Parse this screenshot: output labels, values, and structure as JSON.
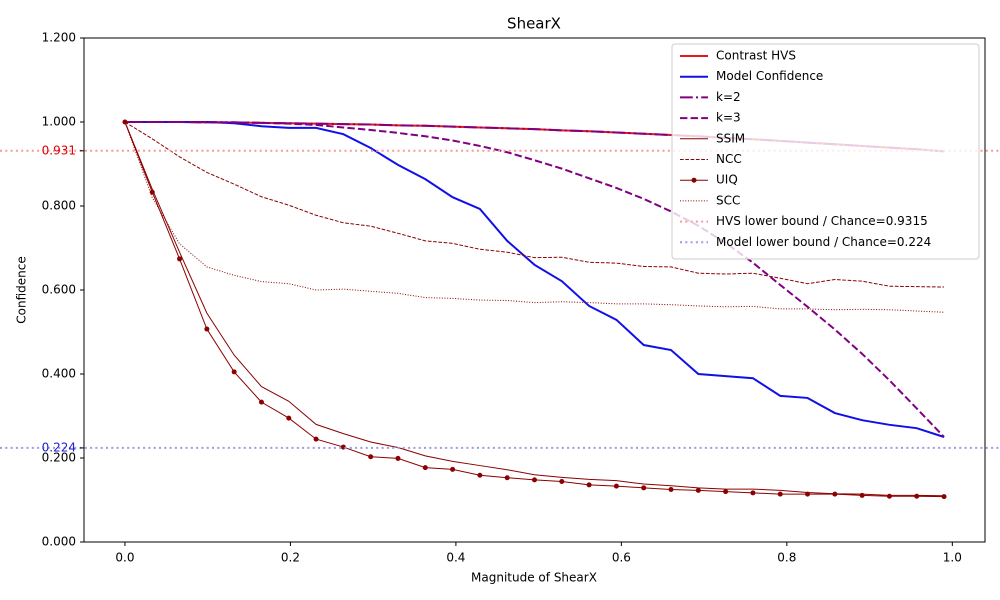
{
  "chart_data": {
    "type": "line",
    "title": "ShearX",
    "xlabel": "Magnitude of ShearX",
    "ylabel": "Confidence",
    "xlim": [
      -0.0495,
      1.0395
    ],
    "ylim": [
      0,
      1.2
    ],
    "xticks": [
      {
        "value": 0,
        "label": "0.0"
      },
      {
        "value": 0.2,
        "label": "0.2"
      },
      {
        "value": 0.4,
        "label": "0.4"
      },
      {
        "value": 0.6,
        "label": "0.6"
      },
      {
        "value": 0.8,
        "label": "0.8"
      },
      {
        "value": 1.0,
        "label": "1.0"
      }
    ],
    "yticks": [
      {
        "value": 0,
        "label": "0.000"
      },
      {
        "value": 0.2,
        "label": "0.200"
      },
      {
        "value": 0.4,
        "label": "0.400"
      },
      {
        "value": 0.6,
        "label": "0.600"
      },
      {
        "value": 0.8,
        "label": "0.800"
      },
      {
        "value": 1.0,
        "label": "1.000"
      },
      {
        "value": 1.2,
        "label": "1.200"
      }
    ],
    "legend": "upper right",
    "x": [
      0,
      0.033,
      0.066,
      0.099,
      0.132,
      0.165,
      0.198,
      0.231,
      0.264,
      0.297,
      0.33,
      0.363,
      0.396,
      0.429,
      0.462,
      0.495,
      0.528,
      0.561,
      0.594,
      0.627,
      0.66,
      0.693,
      0.726,
      0.759,
      0.792,
      0.825,
      0.858,
      0.891,
      0.924,
      0.957,
      0.99
    ],
    "series": [
      {
        "name": "Contrast HVS",
        "color": "#e8141c",
        "linestyle": "solid",
        "linewidth": 2,
        "values": [
          1,
          1,
          1,
          0.999,
          0.999,
          0.998,
          0.997,
          0.996,
          0.995,
          0.994,
          0.992,
          0.991,
          0.989,
          0.987,
          0.985,
          0.983,
          0.98,
          0.978,
          0.975,
          0.972,
          0.969,
          0.966,
          0.962,
          0.959,
          0.955,
          0.951,
          0.947,
          0.943,
          0.939,
          0.935,
          0.93
        ]
      },
      {
        "name": "Model Confidence",
        "color": "#1010e8",
        "linestyle": "solid",
        "linewidth": 2,
        "values": [
          1,
          1,
          1,
          1,
          0.997,
          0.99,
          0.986,
          0.986,
          0.971,
          0.938,
          0.898,
          0.864,
          0.821,
          0.793,
          0.717,
          0.66,
          0.621,
          0.562,
          0.529,
          0.469,
          0.457,
          0.4,
          0.395,
          0.39,
          0.348,
          0.343,
          0.307,
          0.29,
          0.279,
          0.271,
          0.25
        ]
      },
      {
        "name": "k=2",
        "color": "#800080",
        "linestyle": "dashdot",
        "linewidth": 2,
        "values": [
          1,
          1,
          1,
          0.999,
          0.999,
          0.998,
          0.997,
          0.996,
          0.995,
          0.994,
          0.992,
          0.991,
          0.989,
          0.987,
          0.985,
          0.983,
          0.98,
          0.978,
          0.975,
          0.972,
          0.969,
          0.966,
          0.962,
          0.959,
          0.955,
          0.951,
          0.947,
          0.943,
          0.939,
          0.935,
          0.93
        ]
      },
      {
        "name": "k=3",
        "color": "#800080",
        "linestyle": "dashed",
        "linewidth": 2,
        "values": [
          1,
          1,
          1,
          1,
          0.999,
          0.998,
          0.996,
          0.993,
          0.987,
          0.981,
          0.974,
          0.966,
          0.956,
          0.943,
          0.928,
          0.909,
          0.889,
          0.866,
          0.843,
          0.817,
          0.787,
          0.753,
          0.712,
          0.665,
          0.612,
          0.56,
          0.506,
          0.448,
          0.385,
          0.318,
          0.25
        ]
      },
      {
        "name": "SSIM",
        "color": "#8b0000",
        "linestyle": "solid",
        "linewidth": 1,
        "values": [
          1,
          0.84,
          0.69,
          0.545,
          0.445,
          0.37,
          0.335,
          0.28,
          0.258,
          0.238,
          0.225,
          0.205,
          0.192,
          0.182,
          0.172,
          0.16,
          0.154,
          0.149,
          0.146,
          0.138,
          0.134,
          0.129,
          0.126,
          0.126,
          0.123,
          0.118,
          0.115,
          0.114,
          0.111,
          0.111,
          0.11
        ]
      },
      {
        "name": "NCC",
        "color": "#8b0000",
        "linestyle": "dashed",
        "linewidth": 1,
        "values": [
          1,
          0.96,
          0.917,
          0.88,
          0.852,
          0.822,
          0.802,
          0.778,
          0.76,
          0.752,
          0.735,
          0.717,
          0.711,
          0.697,
          0.69,
          0.677,
          0.678,
          0.666,
          0.664,
          0.656,
          0.655,
          0.64,
          0.638,
          0.64,
          0.628,
          0.615,
          0.625,
          0.621,
          0.609,
          0.608,
          0.607
        ]
      },
      {
        "name": "UIQ",
        "color": "#8b0000",
        "linestyle": "solid",
        "linewidth": 1,
        "marker": "circle",
        "values": [
          1,
          0.833,
          0.674,
          0.507,
          0.405,
          0.333,
          0.295,
          0.245,
          0.226,
          0.203,
          0.199,
          0.177,
          0.173,
          0.159,
          0.153,
          0.148,
          0.144,
          0.136,
          0.133,
          0.129,
          0.125,
          0.123,
          0.12,
          0.117,
          0.114,
          0.114,
          0.114,
          0.111,
          0.109,
          0.109,
          0.108
        ]
      },
      {
        "name": "SCC",
        "color": "#8b0000",
        "linestyle": "dotted",
        "linewidth": 1,
        "values": [
          1,
          0.82,
          0.71,
          0.655,
          0.635,
          0.62,
          0.615,
          0.6,
          0.602,
          0.597,
          0.592,
          0.582,
          0.58,
          0.576,
          0.575,
          0.57,
          0.572,
          0.57,
          0.567,
          0.567,
          0.565,
          0.562,
          0.56,
          0.561,
          0.555,
          0.555,
          0.553,
          0.554,
          0.553,
          0.55,
          0.547
        ]
      }
    ],
    "hlines": [
      {
        "name": "HVS lower bound / Chance=0.9315",
        "value": 0.9315,
        "label": "0.931",
        "color": "#f49a9a"
      },
      {
        "name": "Model lower bound / Chance=0.224",
        "value": 0.224,
        "label": "0.224",
        "color": "#9a9ae8"
      }
    ]
  }
}
